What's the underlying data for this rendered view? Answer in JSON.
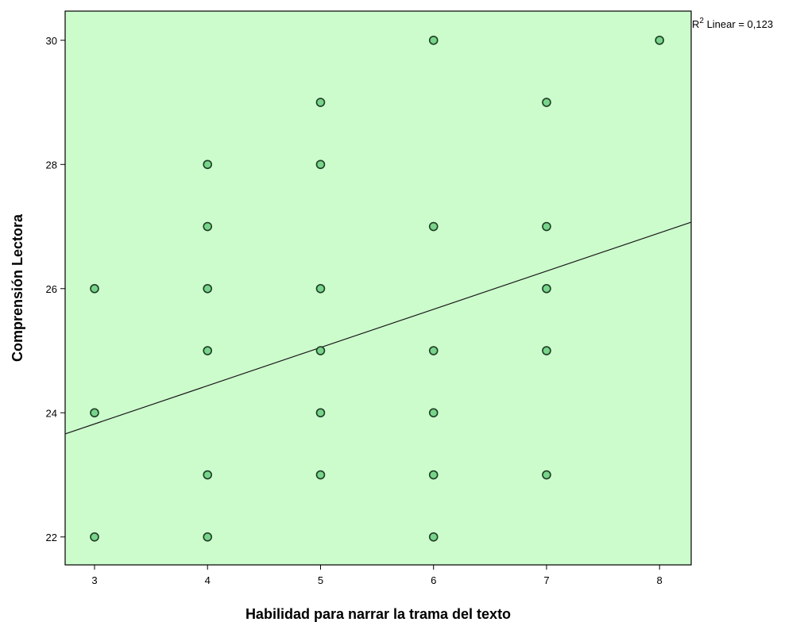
{
  "chart_data": {
    "type": "scatter",
    "xlabel": "Habilidad para narrar la trama del texto",
    "ylabel": "Comprensión Lectora",
    "xlim": [
      2.74,
      8.28
    ],
    "ylim": [
      21.55,
      30.47
    ],
    "x_ticks": [
      3,
      4,
      5,
      6,
      7,
      8
    ],
    "x_tick_labels": [
      "3",
      "4",
      "5",
      "6",
      "7",
      "8"
    ],
    "y_ticks": [
      22,
      24,
      26,
      28,
      30
    ],
    "y_tick_labels": [
      "22",
      "24",
      "26",
      "28",
      "30"
    ],
    "grid": false,
    "background_color": "#ccfccc",
    "marker_color": "#77d48a",
    "marker_edge_color": "#1f3d26",
    "points": [
      {
        "x": 3,
        "y": 26
      },
      {
        "x": 3,
        "y": 24
      },
      {
        "x": 3,
        "y": 22
      },
      {
        "x": 4,
        "y": 28
      },
      {
        "x": 4,
        "y": 27
      },
      {
        "x": 4,
        "y": 26
      },
      {
        "x": 4,
        "y": 25
      },
      {
        "x": 4,
        "y": 23
      },
      {
        "x": 4,
        "y": 22
      },
      {
        "x": 5,
        "y": 29
      },
      {
        "x": 5,
        "y": 28
      },
      {
        "x": 5,
        "y": 26
      },
      {
        "x": 5,
        "y": 25
      },
      {
        "x": 5,
        "y": 24
      },
      {
        "x": 5,
        "y": 23
      },
      {
        "x": 6,
        "y": 30
      },
      {
        "x": 6,
        "y": 27
      },
      {
        "x": 6,
        "y": 25
      },
      {
        "x": 6,
        "y": 24
      },
      {
        "x": 6,
        "y": 23
      },
      {
        "x": 6,
        "y": 22
      },
      {
        "x": 7,
        "y": 29
      },
      {
        "x": 7,
        "y": 27
      },
      {
        "x": 7,
        "y": 26
      },
      {
        "x": 7,
        "y": 25
      },
      {
        "x": 7,
        "y": 23
      },
      {
        "x": 8,
        "y": 30
      }
    ],
    "fit_line": {
      "type": "linear",
      "x": [
        2.74,
        8.28
      ],
      "y": [
        23.66,
        27.07
      ]
    },
    "annotation": {
      "prefix": "R",
      "superscript": "2",
      "text": " Linear = 0,123"
    }
  }
}
